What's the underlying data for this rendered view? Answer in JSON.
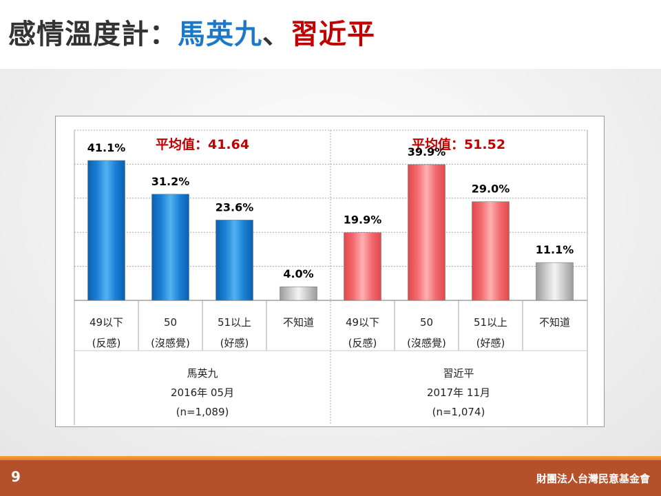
{
  "title": {
    "prefix": "感情溫度計：",
    "person_a": "馬英九",
    "separator": "、",
    "person_b": "習近平"
  },
  "colors": {
    "title_dark": "#333333",
    "title_blue": "#1e78c8",
    "title_red": "#c00000",
    "average_red": "#c00000",
    "bar_blue": "#1a80d6",
    "bar_red": "#f26a6e",
    "bar_gray": "#c8c8c8",
    "footer": "#b4502a"
  },
  "chart_data": {
    "type": "bar",
    "ylim": [
      0,
      50
    ],
    "grid": true,
    "groups": [
      {
        "name": "馬英九",
        "date": "2016年 05月",
        "sample": "(n=1,089)",
        "average_label": "平均值：41.64",
        "categories": [
          {
            "line1": "49以下",
            "line2": "(反感)"
          },
          {
            "line1": "50",
            "line2": "(沒感覺)"
          },
          {
            "line1": "51以上",
            "line2": "(好感)"
          },
          {
            "line1": "不知道",
            "line2": ""
          }
        ],
        "values": [
          41.1,
          31.2,
          23.6,
          4.0
        ],
        "value_labels": [
          "41.1%",
          "31.2%",
          "23.6%",
          "4.0%"
        ],
        "colors": [
          "blue",
          "blue",
          "blue",
          "gray"
        ]
      },
      {
        "name": "習近平",
        "date": "2017年 11月",
        "sample": "(n=1,074)",
        "average_label": "平均值：51.52",
        "categories": [
          {
            "line1": "49以下",
            "line2": "(反感)"
          },
          {
            "line1": "50",
            "line2": "(沒感覺)"
          },
          {
            "line1": "51以上",
            "line2": "(好感)"
          },
          {
            "line1": "不知道",
            "line2": ""
          }
        ],
        "values": [
          19.9,
          39.9,
          29.0,
          11.1
        ],
        "value_labels": [
          "19.9%",
          "39.9%",
          "29.0%",
          "11.1%"
        ],
        "colors": [
          "red",
          "red",
          "red",
          "gray"
        ]
      }
    ]
  },
  "footer": {
    "page_number": "9",
    "org_name": "財團法人台灣民意基金會"
  }
}
